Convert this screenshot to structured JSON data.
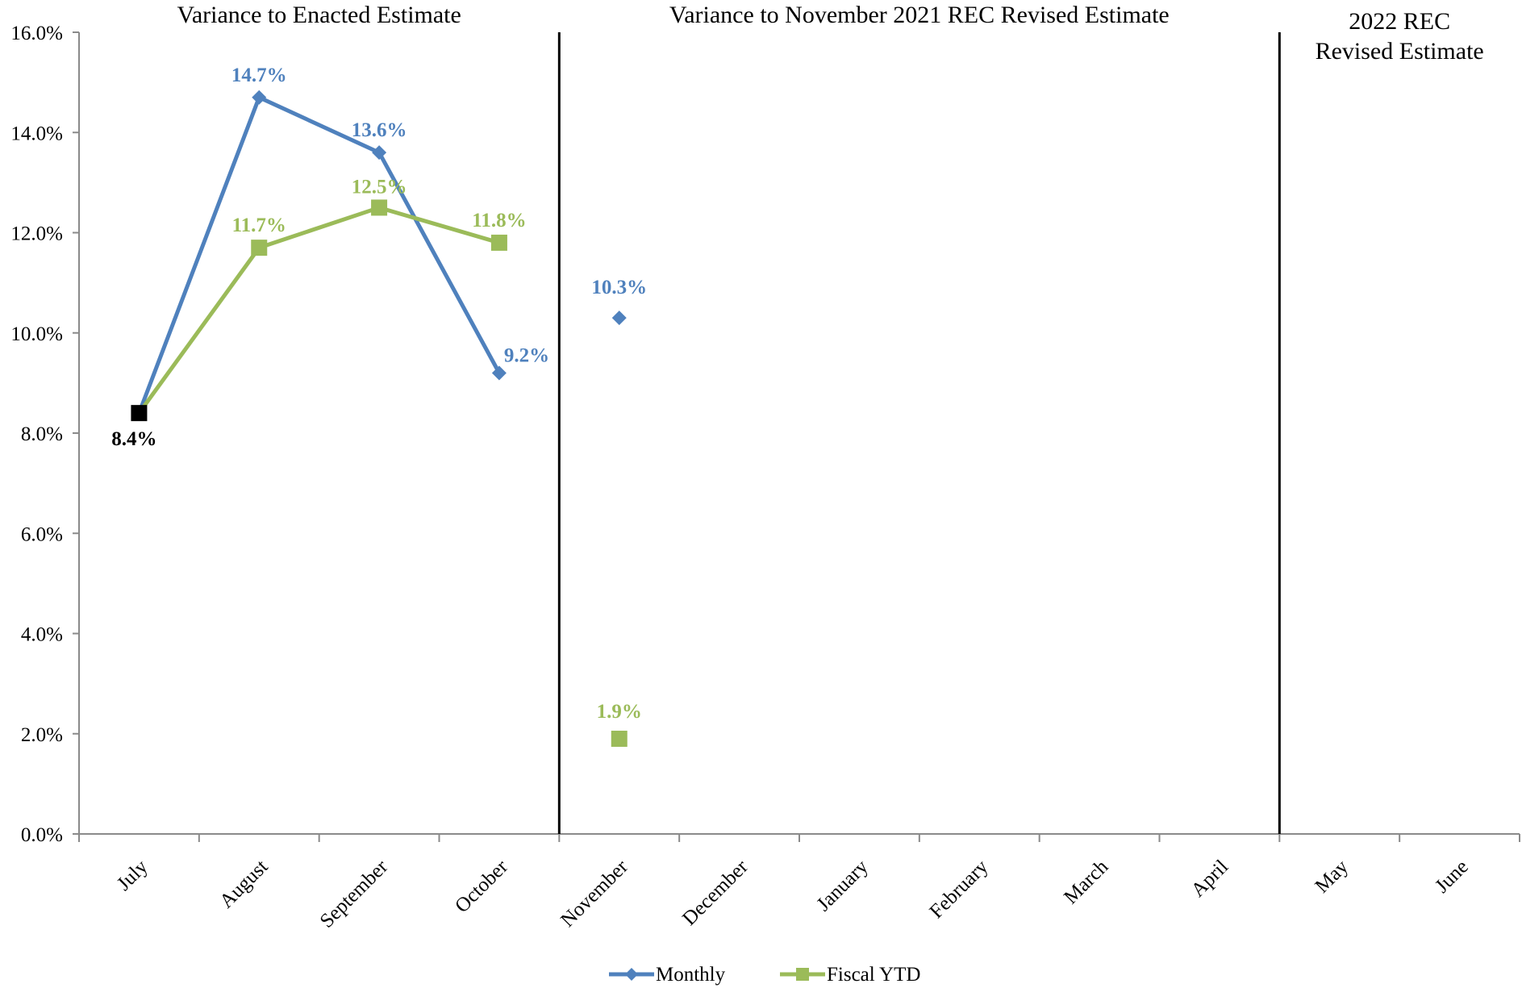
{
  "chart_data": {
    "type": "line",
    "categories": [
      "July",
      "August",
      "September",
      "October",
      "November",
      "December",
      "January",
      "February",
      "March",
      "April",
      "May",
      "June"
    ],
    "ylim": [
      0,
      16
    ],
    "y_ticks": [
      "0.0%",
      "2.0%",
      "4.0%",
      "6.0%",
      "8.0%",
      "10.0%",
      "12.0%",
      "14.0%",
      "16.0%"
    ],
    "grid": false,
    "legend_position": "bottom",
    "sections": [
      {
        "lines": [
          "Variance to Enacted Estimate"
        ],
        "first": 0,
        "last": 3
      },
      {
        "lines": [
          "Variance to November 2021 REC Revised Estimate"
        ],
        "first": 4,
        "last": 9
      },
      {
        "lines": [
          "2022 REC",
          "Revised Estimate"
        ],
        "first": 10,
        "last": 11
      }
    ],
    "series": [
      {
        "name": "Monthly",
        "color": "#4f81bd",
        "marker": "diamond",
        "segments": [
          [
            0,
            3
          ],
          [
            4,
            4
          ]
        ],
        "values": [
          8.4,
          14.7,
          13.6,
          9.2,
          10.3,
          null,
          null,
          null,
          null,
          null,
          null,
          null
        ],
        "labels": [
          "",
          "14.7%",
          "13.6%",
          "9.2%",
          "10.3%",
          "",
          "",
          "",
          "",
          "",
          "",
          ""
        ]
      },
      {
        "name": "Fiscal YTD",
        "color": "#9bbb59",
        "marker": "square",
        "segments": [
          [
            0,
            3
          ],
          [
            4,
            4
          ]
        ],
        "values": [
          8.4,
          11.7,
          12.5,
          11.8,
          1.9,
          null,
          null,
          null,
          null,
          null,
          null,
          null
        ],
        "labels": [
          "",
          "11.7%",
          "12.5%",
          "11.8%",
          "1.9%",
          "",
          "",
          "",
          "",
          "",
          "",
          ""
        ]
      }
    ],
    "shared_point": {
      "index": 0,
      "value": 8.4,
      "label": "8.4%",
      "color": "#000000"
    }
  }
}
